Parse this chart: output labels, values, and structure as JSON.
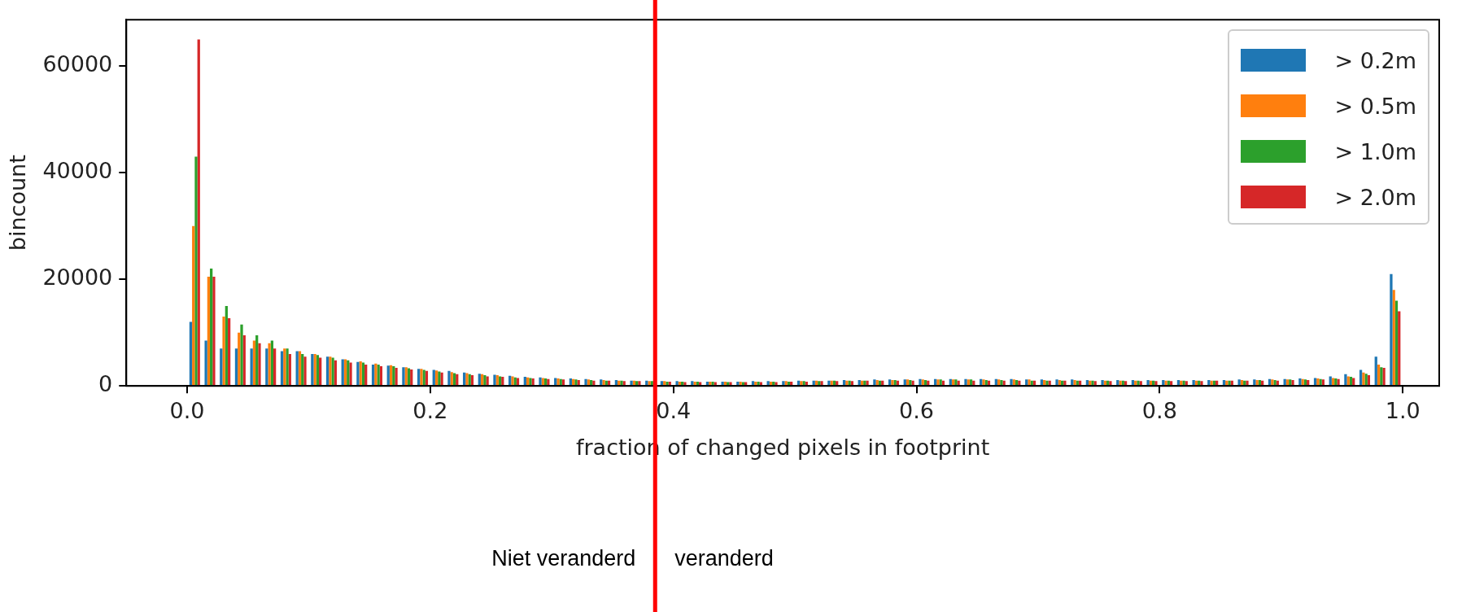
{
  "chart_data": {
    "type": "histogram",
    "xlabel": "fraction of changed pixels in footprint",
    "ylabel": "bincount",
    "bins": [
      0,
      0.0125,
      0.025,
      0.0375,
      0.05,
      0.0625,
      0.075,
      0.0875,
      0.1,
      0.1125,
      0.125,
      0.1375,
      0.15,
      0.1625,
      0.175,
      0.1875,
      0.2,
      0.2125,
      0.225,
      0.2375,
      0.25,
      0.2625,
      0.275,
      0.2875,
      0.3,
      0.3125,
      0.325,
      0.3375,
      0.35,
      0.3625,
      0.375,
      0.3875,
      0.4,
      0.4125,
      0.425,
      0.4375,
      0.45,
      0.4625,
      0.475,
      0.4875,
      0.5,
      0.5125,
      0.525,
      0.5375,
      0.55,
      0.5625,
      0.575,
      0.5875,
      0.6,
      0.6125,
      0.625,
      0.6375,
      0.65,
      0.6625,
      0.675,
      0.6875,
      0.7,
      0.7125,
      0.725,
      0.7375,
      0.75,
      0.7625,
      0.775,
      0.7875,
      0.8,
      0.8125,
      0.825,
      0.8375,
      0.85,
      0.8625,
      0.875,
      0.8875,
      0.9,
      0.9125,
      0.925,
      0.9375,
      0.95,
      0.9625,
      0.975,
      0.9875,
      1
    ],
    "series": [
      {
        "name": "> 0.2m",
        "color": "#1f77b4",
        "values": [
          12000,
          8500,
          7000,
          7000,
          7000,
          7000,
          6500,
          6500,
          6000,
          5500,
          5000,
          4500,
          4000,
          3800,
          3500,
          3200,
          3000,
          2800,
          2500,
          2300,
          2100,
          1900,
          1700,
          1600,
          1500,
          1400,
          1300,
          1200,
          1100,
          1000,
          1000,
          900,
          900,
          900,
          800,
          800,
          800,
          900,
          900,
          900,
          1000,
          1000,
          1000,
          1100,
          1100,
          1200,
          1200,
          1200,
          1300,
          1300,
          1300,
          1300,
          1300,
          1300,
          1300,
          1200,
          1200,
          1200,
          1200,
          1100,
          1100,
          1100,
          1100,
          1100,
          1100,
          1100,
          1100,
          1100,
          1100,
          1200,
          1200,
          1300,
          1300,
          1400,
          1500,
          1800,
          2200,
          3000,
          5500,
          21000
        ]
      },
      {
        "name": "> 0.5m",
        "color": "#ff7f0e",
        "values": [
          30000,
          20500,
          13000,
          10000,
          8500,
          8000,
          7000,
          6500,
          6000,
          5500,
          5000,
          4600,
          4200,
          3900,
          3500,
          3200,
          2900,
          2600,
          2400,
          2200,
          2000,
          1800,
          1600,
          1500,
          1400,
          1300,
          1200,
          1100,
          1000,
          1000,
          900,
          900,
          800,
          800,
          800,
          800,
          800,
          800,
          800,
          900,
          900,
          1000,
          1000,
          1000,
          1000,
          1100,
          1100,
          1200,
          1200,
          1200,
          1200,
          1200,
          1200,
          1200,
          1200,
          1200,
          1100,
          1100,
          1100,
          1000,
          1000,
          1000,
          1000,
          1000,
          1000,
          1000,
          1000,
          1000,
          1000,
          1100,
          1100,
          1200,
          1200,
          1300,
          1400,
          1500,
          1800,
          2500,
          4000,
          18000
        ]
      },
      {
        "name": "> 1.0m",
        "color": "#2ca02c",
        "values": [
          43000,
          22000,
          15000,
          11500,
          9500,
          8500,
          7000,
          6000,
          5800,
          5300,
          4800,
          4400,
          4000,
          3700,
          3300,
          3000,
          2700,
          2400,
          2200,
          2000,
          1800,
          1600,
          1500,
          1400,
          1300,
          1200,
          1100,
          1000,
          1000,
          900,
          900,
          800,
          800,
          800,
          800,
          700,
          700,
          800,
          800,
          800,
          900,
          900,
          1000,
          1000,
          1000,
          1000,
          1100,
          1100,
          1100,
          1200,
          1200,
          1200,
          1100,
          1100,
          1100,
          1000,
          1000,
          1000,
          1000,
          1000,
          1000,
          1000,
          1000,
          1000,
          1000,
          1000,
          1000,
          1000,
          1000,
          1000,
          1100,
          1100,
          1200,
          1200,
          1300,
          1400,
          1700,
          2300,
          3500,
          16000
        ]
      },
      {
        "name": "> 2.0m",
        "color": "#d62728",
        "values": [
          65000,
          20500,
          12700,
          9500,
          8000,
          7000,
          6000,
          5500,
          5300,
          4800,
          4400,
          4000,
          3700,
          3400,
          3100,
          2800,
          2500,
          2200,
          2000,
          1800,
          1700,
          1500,
          1400,
          1300,
          1200,
          1100,
          1000,
          1000,
          900,
          900,
          null,
          800,
          700,
          700,
          700,
          700,
          700,
          700,
          700,
          800,
          800,
          900,
          900,
          900,
          1000,
          1000,
          1000,
          1000,
          1000,
          1000,
          1000,
          1000,
          1000,
          1000,
          1000,
          1000,
          1000,
          1000,
          1000,
          900,
          900,
          900,
          900,
          900,
          900,
          900,
          900,
          1000,
          1000,
          1000,
          1000,
          1000,
          1100,
          1100,
          1200,
          1300,
          1500,
          2000,
          3400,
          14000
        ]
      }
    ],
    "xlim": [
      -0.05,
      1.03
    ],
    "xticks": [
      {
        "value": 0,
        "label": "0.0"
      },
      0.2,
      0.4,
      0.6,
      0.8,
      {
        "value": 1,
        "label": "1.0"
      }
    ],
    "ylim": [
      0,
      68700
    ],
    "yticks": [
      0,
      20000,
      40000,
      60000
    ],
    "legend": "top right",
    "ref_lines": [
      {
        "axis": "x",
        "value": 0.385,
        "color": "#ff0000"
      }
    ],
    "annotations": [
      {
        "text": "Niet veranderd",
        "x": 0.385
      },
      {
        "text": "veranderd",
        "x": 0.385
      }
    ]
  }
}
